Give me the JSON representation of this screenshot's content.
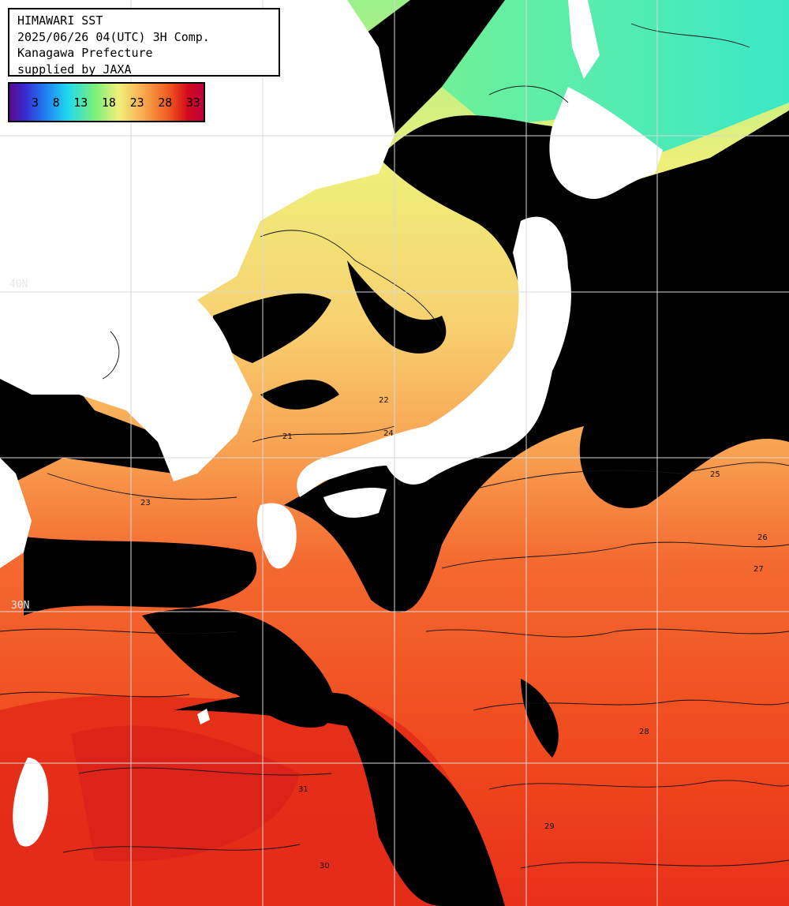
{
  "header": {
    "line1": "HIMAWARI SST",
    "line2": "2025/06/26 04(UTC) 3H Comp.",
    "line3": "Kanagawa Prefecture",
    "line4": "supplied by JAXA"
  },
  "legend": {
    "ticks": [
      "3",
      "8",
      "13",
      "18",
      "23",
      "28",
      "33"
    ],
    "colors": [
      "#5a0a8c",
      "#1f7af0",
      "#20d8f0",
      "#7af07a",
      "#f0f07a",
      "#f8b050",
      "#f05a20",
      "#d00a1a"
    ]
  },
  "grid": {
    "lat_labels": [
      "40N",
      "30N"
    ]
  },
  "contour_labels": [
    "22",
    "21",
    "24",
    "23",
    "25",
    "26",
    "27",
    "28",
    "29",
    "30",
    "31"
  ],
  "palette": {
    "land": "#ffffff",
    "cloud": "#000000",
    "grid": "#cccccc",
    "contour": "#111111"
  }
}
